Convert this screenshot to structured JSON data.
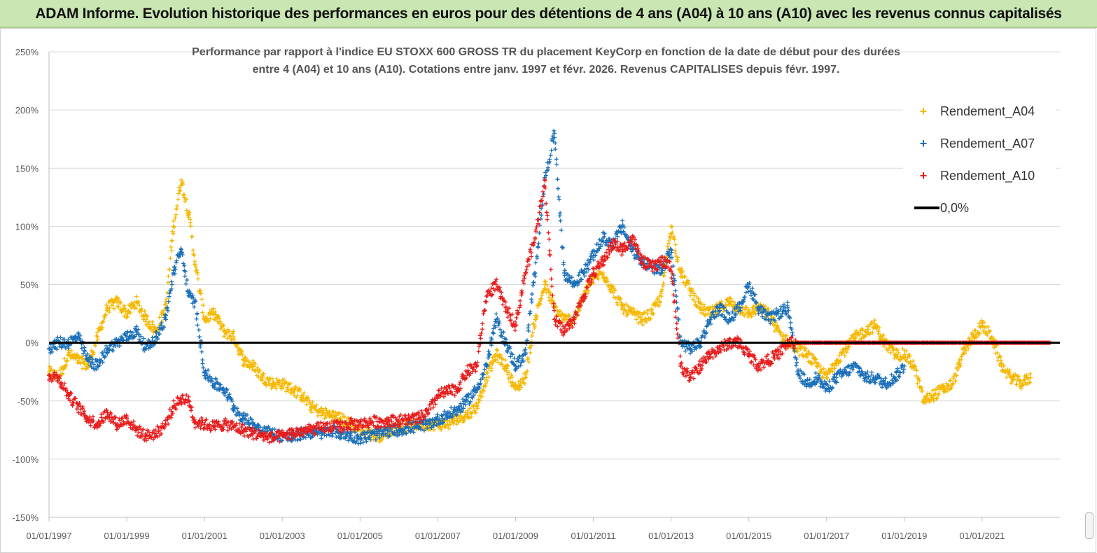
{
  "header": {
    "title": "ADAM Informe. Evolution historique des performances en euros pour des détentions de 4 ans (A04) à 10 ans (A10) avec les revenus connus capitalisés"
  },
  "chart_data": {
    "type": "scatter",
    "title_lines": [
      "Performance par rapport à l'indice EU STOXX 600 GROSS TR  du placement KeyCorp en fonction de la date de début pour des durées",
      "entre 4 (A04) et 10 ans (A10). Cotations entre janv. 1997 et févr. 2026. Revenus CAPITALISES depuis févr. 1997."
    ],
    "xlim": [
      1997.0,
      2023.0
    ],
    "ylim": [
      -150,
      250
    ],
    "y_ticks": [
      250,
      200,
      150,
      100,
      50,
      0,
      -50,
      -100,
      -150
    ],
    "y_tick_labels": [
      "250%",
      "200%",
      "150%",
      "100%",
      "50%",
      "0%",
      "-50%",
      "-100%",
      "-150%"
    ],
    "x_ticks": [
      1997,
      1999,
      2001,
      2003,
      2005,
      2007,
      2009,
      2011,
      2013,
      2015,
      2017,
      2019,
      2021
    ],
    "x_tick_labels": [
      "01/01/1997",
      "01/01/1999",
      "01/01/2001",
      "01/01/2003",
      "01/01/2005",
      "01/01/2007",
      "01/01/2009",
      "01/01/2011",
      "01/01/2013",
      "01/01/2015",
      "01/01/2017",
      "01/01/2019",
      "01/01/2021"
    ],
    "grid": "horizontal",
    "legend_position": "top-right",
    "reference_line": {
      "name": "0,0%",
      "y": 0,
      "color": "#000000"
    },
    "series": [
      {
        "name": "Rendement_A04",
        "color": "#f5b800",
        "x": [
          1997.0,
          1997.25,
          1997.5,
          1997.75,
          1998.0,
          1998.25,
          1998.5,
          1998.75,
          1999.0,
          1999.25,
          1999.5,
          1999.75,
          2000.0,
          2000.2,
          2000.4,
          2000.6,
          2000.75,
          2001.0,
          2001.25,
          2001.5,
          2001.75,
          2002.0,
          2002.25,
          2002.5,
          2002.75,
          2003.0,
          2003.25,
          2003.5,
          2003.75,
          2004.0,
          2004.25,
          2004.5,
          2004.75,
          2005.0,
          2005.25,
          2005.5,
          2005.75,
          2006.0,
          2006.25,
          2006.5,
          2006.75,
          2007.0,
          2007.25,
          2007.5,
          2007.75,
          2008.0,
          2008.25,
          2008.5,
          2008.75,
          2009.0,
          2009.25,
          2009.5,
          2009.75,
          2010.0,
          2010.25,
          2010.5,
          2010.75,
          2011.0,
          2011.25,
          2011.5,
          2011.75,
          2012.0,
          2012.25,
          2012.5,
          2012.75,
          2013.0,
          2013.25,
          2013.5,
          2013.75,
          2014.0,
          2014.25,
          2014.5,
          2014.75,
          2015.0,
          2015.25,
          2015.5,
          2015.75,
          2016.0,
          2016.25,
          2016.5,
          2016.75,
          2017.0,
          2017.25,
          2017.5,
          2017.75,
          2018.0,
          2018.25,
          2018.5,
          2018.75,
          2019.0,
          2019.25,
          2019.5,
          2019.75,
          2020.0,
          2020.25,
          2020.5,
          2020.75,
          2021.0,
          2021.25,
          2021.5,
          2021.75,
          2022.0,
          2022.25
        ],
        "values": [
          -25,
          -30,
          -10,
          -15,
          -20,
          5,
          30,
          35,
          25,
          35,
          20,
          10,
          30,
          100,
          140,
          110,
          70,
          20,
          25,
          10,
          5,
          -15,
          -20,
          -30,
          -35,
          -35,
          -40,
          -45,
          -55,
          -60,
          -62,
          -65,
          -70,
          -75,
          -78,
          -80,
          -75,
          -73,
          -72,
          -70,
          -70,
          -70,
          -70,
          -65,
          -62,
          -55,
          -30,
          -10,
          -20,
          -40,
          -30,
          20,
          50,
          30,
          20,
          20,
          40,
          55,
          60,
          45,
          30,
          25,
          20,
          25,
          40,
          100,
          60,
          45,
          30,
          25,
          30,
          35,
          30,
          25,
          30,
          25,
          10,
          0,
          -5,
          -10,
          -20,
          -30,
          -15,
          -5,
          5,
          10,
          15,
          0,
          -10,
          -10,
          -20,
          -50,
          -45,
          -40,
          -35,
          -10,
          5,
          15,
          5,
          -20,
          -30,
          -35,
          -30
        ]
      },
      {
        "name": "Rendement_A07",
        "color": "#1a6fb8",
        "x": [
          1997.0,
          1997.25,
          1997.5,
          1997.75,
          1998.0,
          1998.25,
          1998.5,
          1998.75,
          1999.0,
          1999.25,
          1999.5,
          1999.75,
          2000.0,
          2000.2,
          2000.4,
          2000.6,
          2000.75,
          2001.0,
          2001.25,
          2001.5,
          2001.75,
          2002.0,
          2002.25,
          2002.5,
          2002.75,
          2003.0,
          2003.25,
          2003.5,
          2003.75,
          2004.0,
          2004.25,
          2004.5,
          2004.75,
          2005.0,
          2005.25,
          2005.5,
          2005.75,
          2006.0,
          2006.25,
          2006.5,
          2006.75,
          2007.0,
          2007.25,
          2007.5,
          2007.75,
          2008.0,
          2008.25,
          2008.5,
          2008.75,
          2009.0,
          2009.25,
          2009.5,
          2009.75,
          2010.0,
          2010.25,
          2010.5,
          2010.75,
          2011.0,
          2011.25,
          2011.5,
          2011.75,
          2012.0,
          2012.25,
          2012.5,
          2012.75,
          2013.0,
          2013.25,
          2013.5,
          2013.75,
          2014.0,
          2014.25,
          2014.5,
          2014.75,
          2015.0,
          2015.25,
          2015.5,
          2015.75,
          2016.0,
          2016.25,
          2016.5,
          2016.75,
          2017.0,
          2017.25,
          2017.5,
          2017.75,
          2018.0,
          2018.25,
          2018.5,
          2018.75,
          2019.0
        ],
        "values": [
          -5,
          0,
          0,
          5,
          -15,
          -20,
          -5,
          0,
          5,
          10,
          -5,
          5,
          20,
          60,
          80,
          40,
          35,
          -25,
          -35,
          -40,
          -55,
          -65,
          -70,
          -75,
          -78,
          -80,
          -82,
          -78,
          -77,
          -78,
          -75,
          -78,
          -80,
          -82,
          -80,
          -78,
          -76,
          -75,
          -73,
          -72,
          -70,
          -66,
          -62,
          -58,
          -50,
          -40,
          -20,
          20,
          0,
          -20,
          -10,
          60,
          140,
          180,
          60,
          50,
          60,
          75,
          90,
          85,
          100,
          80,
          70,
          65,
          60,
          80,
          0,
          -5,
          0,
          20,
          30,
          20,
          30,
          50,
          30,
          20,
          25,
          30,
          -25,
          -35,
          -30,
          -40,
          -30,
          -25,
          -20,
          -30,
          -30,
          -35,
          -30,
          -20
        ]
      },
      {
        "name": "Rendement_A10",
        "color": "#e81c1c",
        "x": [
          1997.0,
          1997.25,
          1997.5,
          1997.75,
          1998.0,
          1998.25,
          1998.5,
          1998.75,
          1999.0,
          1999.25,
          1999.5,
          1999.75,
          2000.0,
          2000.2,
          2000.4,
          2000.6,
          2000.75,
          2001.0,
          2001.25,
          2001.5,
          2001.75,
          2002.0,
          2002.25,
          2002.5,
          2002.75,
          2003.0,
          2003.25,
          2003.5,
          2003.75,
          2004.0,
          2004.25,
          2004.5,
          2004.75,
          2005.0,
          2005.25,
          2005.5,
          2005.75,
          2006.0,
          2006.25,
          2006.5,
          2006.75,
          2007.0,
          2007.25,
          2007.5,
          2007.75,
          2008.0,
          2008.25,
          2008.5,
          2008.75,
          2009.0,
          2009.25,
          2009.5,
          2009.75,
          2010.0,
          2010.25,
          2010.5,
          2010.75,
          2011.0,
          2011.25,
          2011.5,
          2011.75,
          2012.0,
          2012.25,
          2012.5,
          2012.75,
          2013.0,
          2013.25,
          2013.5,
          2013.75,
          2014.0,
          2014.25,
          2014.5,
          2014.75,
          2015.0,
          2015.25,
          2015.5,
          2015.75,
          2016.0,
          2016.25,
          2016.5,
          2016.75,
          2017.0,
          2017.25,
          2017.5,
          2017.75,
          2018.0,
          2018.25,
          2018.5,
          2018.75,
          2019.0,
          2019.25,
          2019.5,
          2019.75,
          2020.0,
          2020.25,
          2020.5,
          2020.75,
          2021.0,
          2021.25,
          2021.5,
          2021.75,
          2022.0,
          2022.25,
          2022.5,
          2022.75
        ],
        "values": [
          -28,
          -30,
          -45,
          -55,
          -65,
          -70,
          -60,
          -70,
          -65,
          -75,
          -80,
          -78,
          -70,
          -55,
          -48,
          -50,
          -68,
          -70,
          -72,
          -70,
          -72,
          -75,
          -78,
          -80,
          -82,
          -80,
          -78,
          -76,
          -75,
          -73,
          -72,
          -72,
          -70,
          -70,
          -68,
          -68,
          -67,
          -67,
          -66,
          -65,
          -60,
          -45,
          -42,
          -40,
          -25,
          -20,
          40,
          50,
          30,
          15,
          60,
          90,
          140,
          20,
          10,
          20,
          40,
          60,
          70,
          85,
          80,
          90,
          70,
          65,
          70,
          65,
          -20,
          -30,
          -20,
          -10,
          -5,
          0,
          0,
          -10,
          -20,
          -15,
          -10,
          0,
          0,
          0,
          0,
          0,
          0,
          0,
          0,
          0,
          0,
          0,
          0,
          0,
          0,
          0,
          0,
          0,
          0,
          0,
          0,
          0,
          0,
          0,
          0,
          0,
          0,
          0,
          0
        ]
      }
    ]
  }
}
